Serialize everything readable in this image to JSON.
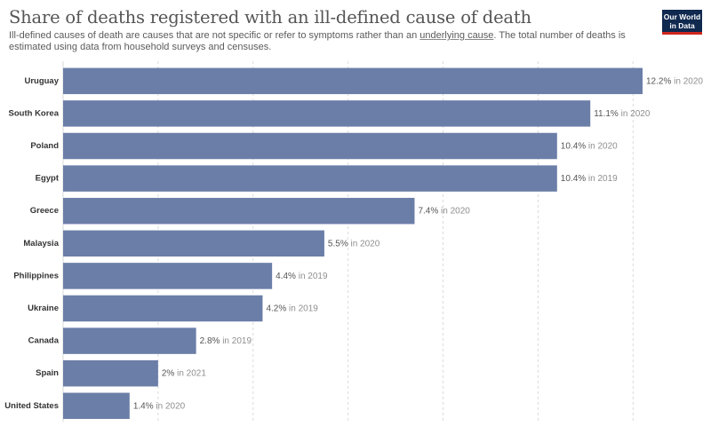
{
  "header": {
    "title": "Share of deaths registered with an ill-defined cause of death",
    "subtitle_pre": "Ill-defined causes of death are causes that are not specific or refer to symptoms rather than an ",
    "subtitle_link": "underlying cause",
    "subtitle_post": ". The total number of deaths is estimated using data from household surveys and censuses.",
    "logo_line1": "Our World",
    "logo_line2": "in Data"
  },
  "colors": {
    "bar": "#6b7ea8",
    "grid": "#dadada",
    "label_text": "#333333",
    "value_text": "#555555",
    "year_text": "#8f8f8f",
    "logo_bg": "#10294f",
    "logo_accent": "#ce261e"
  },
  "chart_data": {
    "type": "bar",
    "orientation": "horizontal",
    "categories": [
      "Uruguay",
      "South Korea",
      "Poland",
      "Egypt",
      "Greece",
      "Malaysia",
      "Philippines",
      "Ukraine",
      "Canada",
      "Spain",
      "United States"
    ],
    "values": [
      12.2,
      11.1,
      10.4,
      10.4,
      7.4,
      5.5,
      4.4,
      4.2,
      2.8,
      2,
      1.4
    ],
    "value_labels": [
      "12.2%",
      "11.1%",
      "10.4%",
      "10.4%",
      "7.4%",
      "5.5%",
      "4.4%",
      "4.2%",
      "2.8%",
      "2%",
      "1.4%"
    ],
    "year_labels": [
      "in 2020",
      "in 2020",
      "in 2020",
      "in 2019",
      "in 2020",
      "in 2020",
      "in 2019",
      "in 2019",
      "in 2019",
      "in 2021",
      "in 2020"
    ],
    "unit": "%",
    "xlim": [
      0,
      12.2
    ],
    "grid_ticks": [
      0,
      2,
      4,
      6,
      8,
      10,
      12
    ],
    "grid": true
  }
}
